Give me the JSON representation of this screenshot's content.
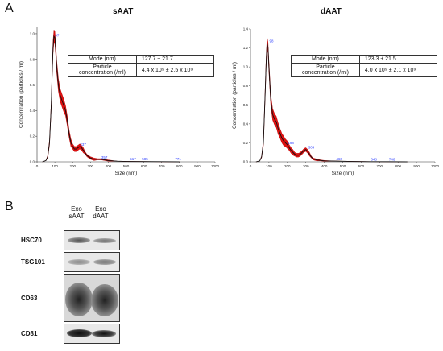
{
  "panels": {
    "a": "A",
    "b": "B"
  },
  "chart_data": [
    {
      "type": "line",
      "title": "sAAT",
      "xlabel": "Size (nm)",
      "ylabel": "Concentration (particles / ml)",
      "xlim": [
        0,
        1000
      ],
      "ylim": [
        0,
        1.05
      ],
      "xticks": [
        "0",
        "100",
        "200",
        "300",
        "400",
        "500",
        "600",
        "700",
        "800",
        "900",
        "1000"
      ],
      "yticks": [
        "0.0",
        "0.2",
        "0.4",
        "0.6",
        "0.8",
        "1.0"
      ],
      "x": [
        30,
        50,
        60,
        70,
        80,
        85,
        90,
        95,
        100,
        105,
        110,
        120,
        130,
        140,
        150,
        160,
        170,
        180,
        190,
        200,
        210,
        220,
        230,
        240,
        250,
        260,
        270,
        280,
        290,
        300,
        320,
        340,
        360,
        380,
        400,
        450,
        500,
        600,
        700,
        800
      ],
      "y": [
        0,
        0.01,
        0.04,
        0.15,
        0.45,
        0.7,
        0.9,
        0.98,
        0.97,
        0.88,
        0.75,
        0.6,
        0.52,
        0.48,
        0.44,
        0.4,
        0.32,
        0.22,
        0.15,
        0.12,
        0.1,
        0.1,
        0.11,
        0.12,
        0.11,
        0.09,
        0.07,
        0.05,
        0.04,
        0.03,
        0.02,
        0.02,
        0.02,
        0.015,
        0.01,
        0.005,
        0.003,
        0.002,
        0.001,
        0
      ],
      "band": [
        0,
        0,
        0.01,
        0.02,
        0.03,
        0.04,
        0.05,
        0.05,
        0.05,
        0.05,
        0.05,
        0.05,
        0.05,
        0.05,
        0.05,
        0.04,
        0.04,
        0.03,
        0.03,
        0.02,
        0.02,
        0.02,
        0.02,
        0.02,
        0.02,
        0.02,
        0.01,
        0.01,
        0.01,
        0.01,
        0.01,
        0.005,
        0.005,
        0.005,
        0.005,
        0,
        0,
        0,
        0,
        0
      ],
      "peak_labels": [
        {
          "x": 97,
          "y": 0.97,
          "text": "97"
        },
        {
          "x": 237,
          "y": 0.12,
          "text": "237"
        },
        {
          "x": 357,
          "y": 0.02,
          "text": "357"
        },
        {
          "x": 517,
          "y": 0.005,
          "text": "517"
        },
        {
          "x": 585,
          "y": 0.005,
          "text": "585"
        },
        {
          "x": 771,
          "y": 0.005,
          "text": "771"
        }
      ],
      "table": {
        "mode_label": "Mode (nm)",
        "mode_value": "127.7 ± 21.7",
        "conc_label_1": "Particle",
        "conc_label_2": "concentration (/ml)",
        "conc_value": "4.4 x 10⁹ ± 2.5 x 10⁹"
      }
    },
    {
      "type": "line",
      "title": "dAAT",
      "xlabel": "Size (nm)",
      "ylabel": "Concentration (particles / ml)",
      "xlim": [
        0,
        1000
      ],
      "ylim": [
        0,
        1.4
      ],
      "xticks": [
        "0",
        "100",
        "200",
        "300",
        "400",
        "500",
        "600",
        "700",
        "800",
        "900",
        "1000"
      ],
      "yticks": [
        "0.0",
        "0.2",
        "0.4",
        "0.6",
        "0.8",
        "1.0",
        "1.2",
        "1.4"
      ],
      "x": [
        30,
        50,
        60,
        70,
        80,
        85,
        90,
        95,
        100,
        110,
        120,
        130,
        140,
        150,
        160,
        170,
        180,
        190,
        200,
        210,
        220,
        230,
        240,
        250,
        260,
        270,
        280,
        290,
        300,
        310,
        320,
        330,
        340,
        360,
        380,
        400,
        460,
        550,
        650,
        750,
        850
      ],
      "y": [
        0,
        0.01,
        0.05,
        0.2,
        0.75,
        1.05,
        1.25,
        1.2,
        1.0,
        0.65,
        0.5,
        0.45,
        0.42,
        0.35,
        0.3,
        0.25,
        0.22,
        0.2,
        0.18,
        0.15,
        0.12,
        0.1,
        0.08,
        0.07,
        0.07,
        0.08,
        0.1,
        0.12,
        0.13,
        0.11,
        0.08,
        0.05,
        0.03,
        0.02,
        0.015,
        0.01,
        0.008,
        0.004,
        0.002,
        0.001,
        0
      ],
      "band": [
        0,
        0,
        0.01,
        0.03,
        0.05,
        0.06,
        0.06,
        0.06,
        0.06,
        0.06,
        0.06,
        0.06,
        0.06,
        0.06,
        0.05,
        0.05,
        0.05,
        0.04,
        0.04,
        0.03,
        0.03,
        0.03,
        0.02,
        0.02,
        0.02,
        0.02,
        0.02,
        0.02,
        0.02,
        0.02,
        0.02,
        0.01,
        0.01,
        0.01,
        0.005,
        0.005,
        0,
        0,
        0,
        0,
        0
      ],
      "peak_labels": [
        {
          "x": 98,
          "y": 1.25,
          "text": "98"
        },
        {
          "x": 198,
          "y": 0.18,
          "text": "198"
        },
        {
          "x": 309,
          "y": 0.13,
          "text": "309"
        },
        {
          "x": 460,
          "y": 0.008,
          "text": "460"
        },
        {
          "x": 648,
          "y": 0.004,
          "text": "648"
        },
        {
          "x": 746,
          "y": 0.004,
          "text": "746"
        }
      ],
      "table": {
        "mode_label": "Mode (nm)",
        "mode_value": "123.3 ± 21.5",
        "conc_label_1": "Particle",
        "conc_label_2": "concentration (/ml)",
        "conc_value": "4.0 x 10⁹ ± 2.1 x 10⁹"
      }
    }
  ],
  "blot": {
    "lane1_line1": "Exo",
    "lane1_line2": "sAAT",
    "lane2_line1": "Exo",
    "lane2_line2": "dAAT",
    "rows": [
      {
        "label": "HSC70"
      },
      {
        "label": "TSG101"
      },
      {
        "label": "CD63"
      },
      {
        "label": "CD81"
      }
    ]
  }
}
